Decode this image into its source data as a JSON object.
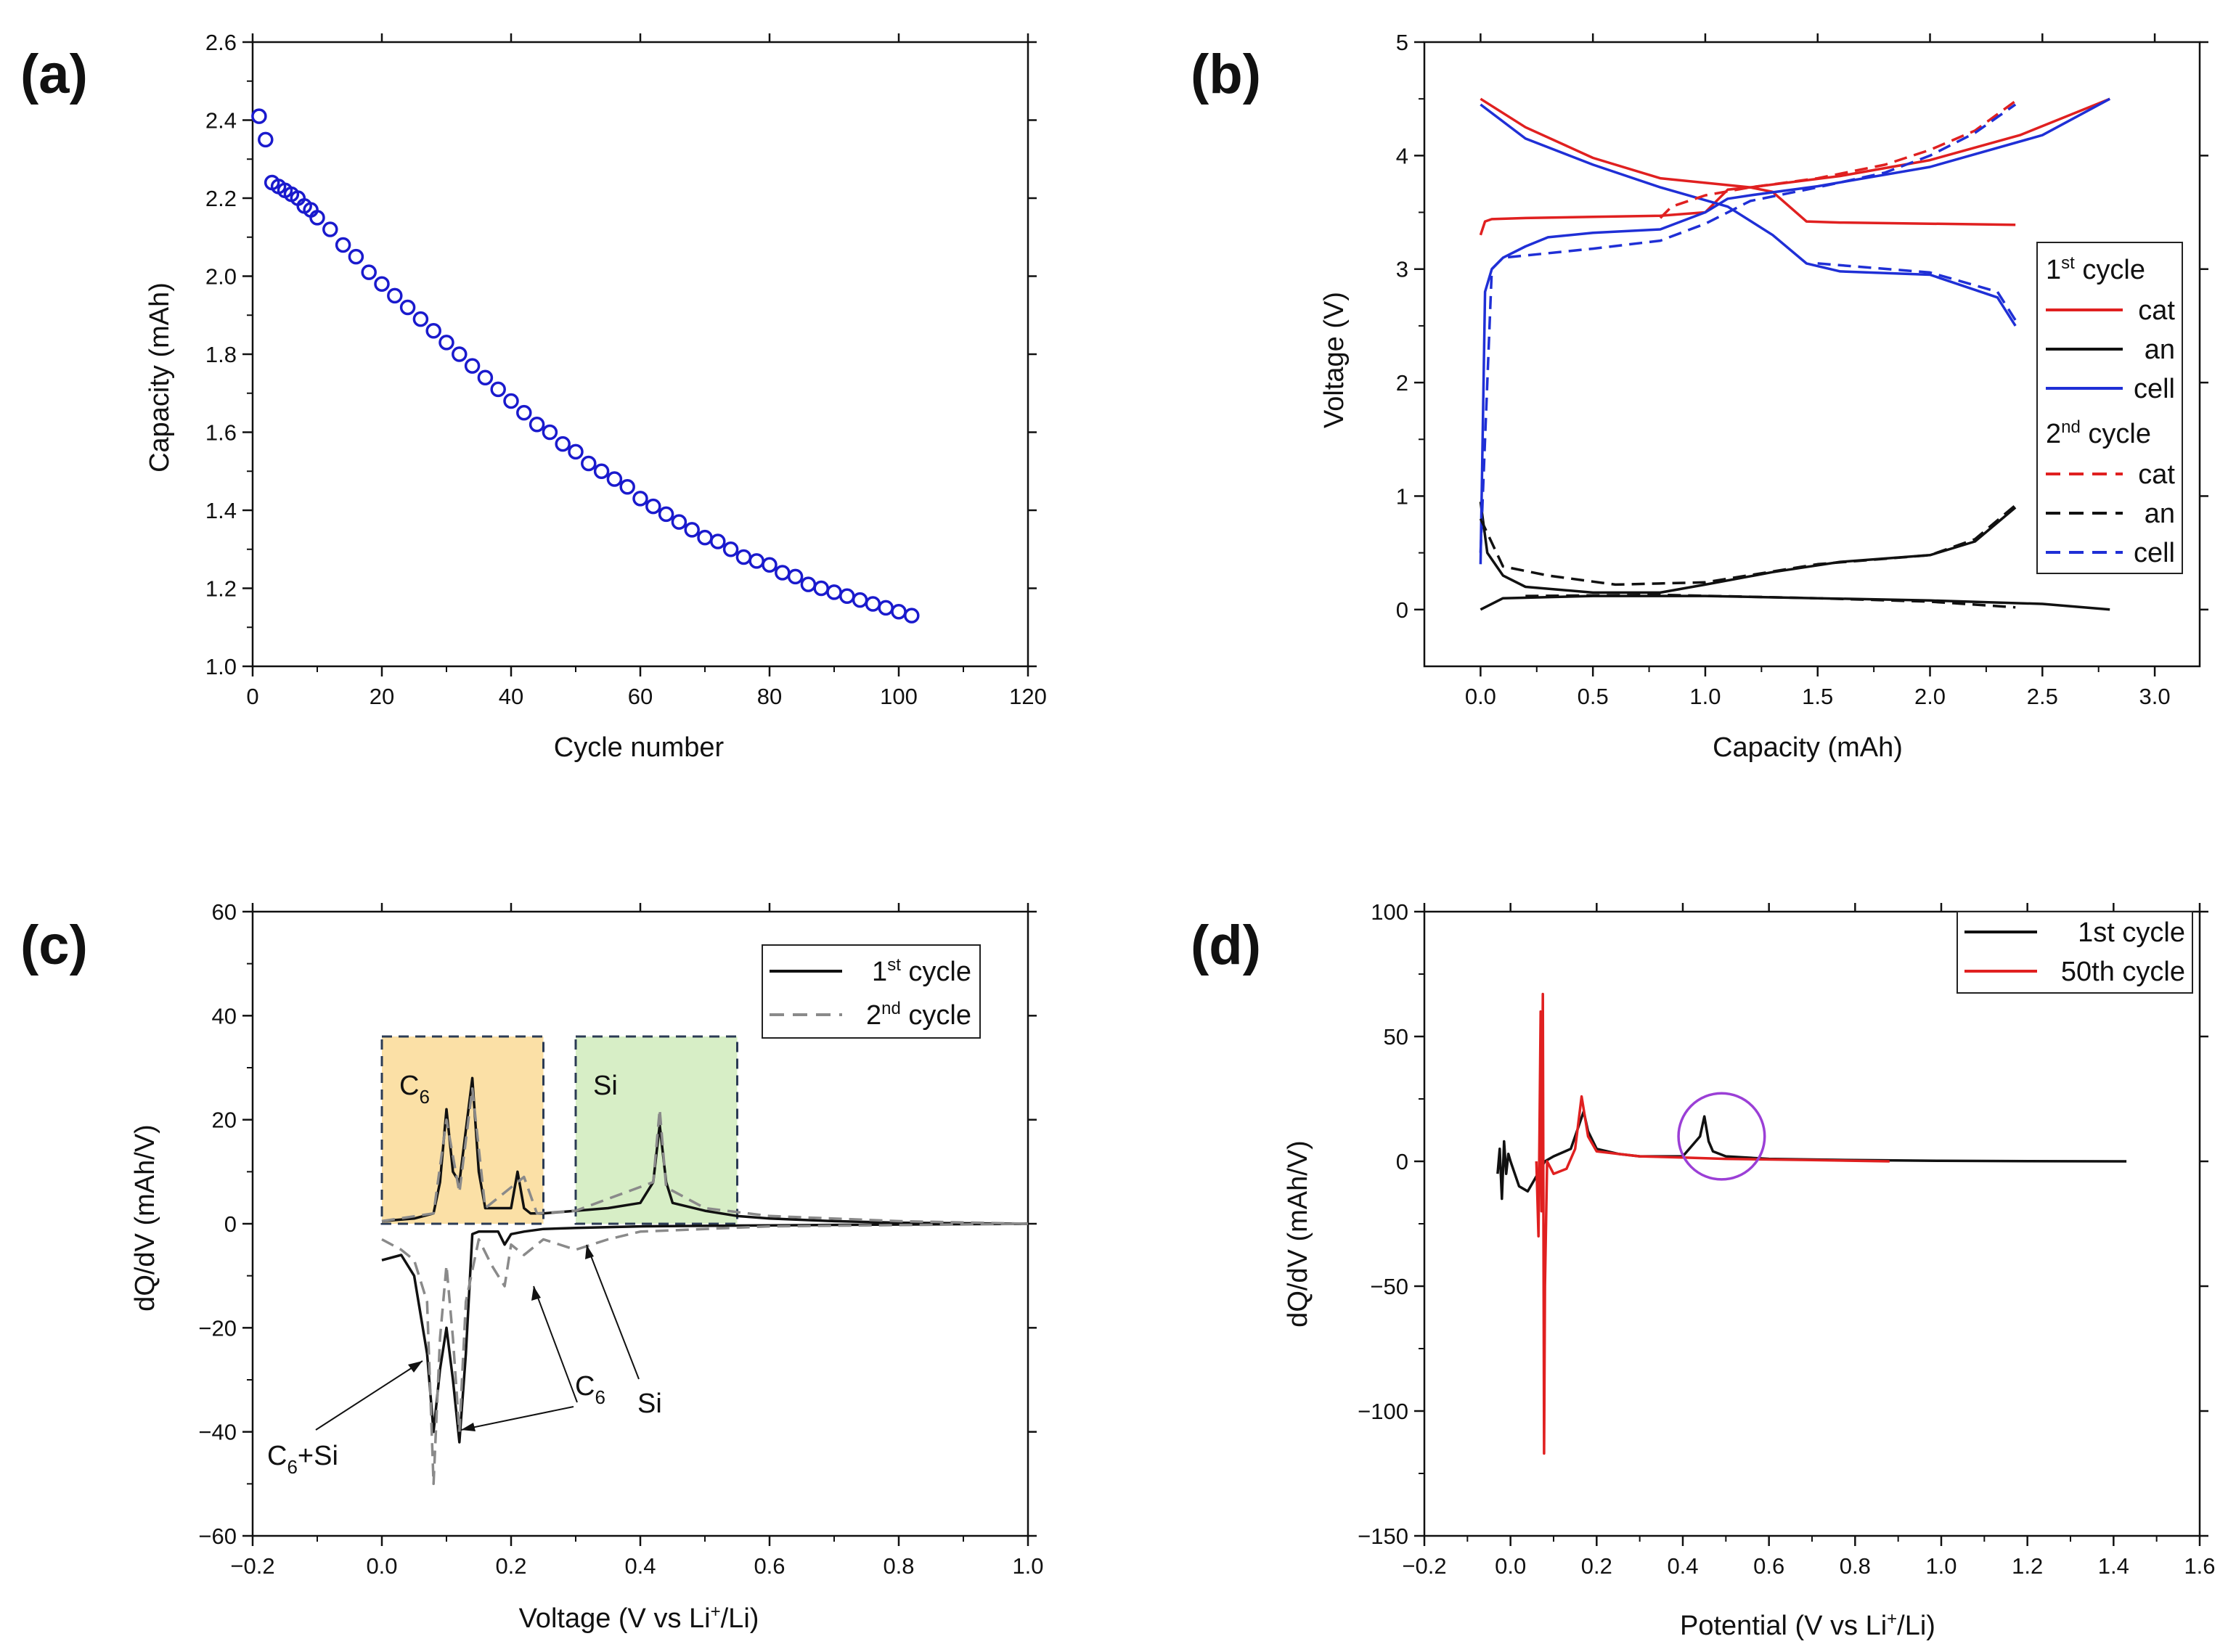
{
  "figure": {
    "background": "#ffffff"
  },
  "chart_data": [
    {
      "id": "a",
      "panel_label": "(a)",
      "type": "scatter",
      "xlabel": "Cycle number",
      "ylabel": "Capacity (mAh)",
      "xlim": [
        0,
        120
      ],
      "ylim": [
        1.0,
        2.6
      ],
      "xticks": [
        0,
        20,
        40,
        60,
        80,
        100,
        120
      ],
      "yticks": [
        1.0,
        1.2,
        1.4,
        1.6,
        1.8,
        2.0,
        2.2,
        2.4,
        2.6
      ],
      "tick_decimals_x": 0,
      "tick_decimals_y": 1,
      "grid": false,
      "marker": "open-circle",
      "color": "#1a1acd",
      "series": [
        {
          "name": "capacity",
          "x": [
            1,
            2,
            3,
            4,
            5,
            6,
            7,
            8,
            9,
            10,
            12,
            14,
            16,
            18,
            20,
            22,
            24,
            26,
            28,
            30,
            32,
            34,
            36,
            38,
            40,
            42,
            44,
            46,
            48,
            50,
            52,
            54,
            56,
            58,
            60,
            62,
            64,
            66,
            68,
            70,
            72,
            74,
            76,
            78,
            80,
            82,
            84,
            86,
            88,
            90,
            92,
            94,
            96,
            98,
            100,
            102
          ],
          "y": [
            2.41,
            2.35,
            2.24,
            2.23,
            2.22,
            2.21,
            2.2,
            2.18,
            2.17,
            2.15,
            2.12,
            2.08,
            2.05,
            2.01,
            1.98,
            1.95,
            1.92,
            1.89,
            1.86,
            1.83,
            1.8,
            1.77,
            1.74,
            1.71,
            1.68,
            1.65,
            1.62,
            1.6,
            1.57,
            1.55,
            1.52,
            1.5,
            1.48,
            1.46,
            1.43,
            1.41,
            1.39,
            1.37,
            1.35,
            1.33,
            1.32,
            1.3,
            1.28,
            1.27,
            1.26,
            1.24,
            1.23,
            1.21,
            1.2,
            1.19,
            1.18,
            1.17,
            1.16,
            1.15,
            1.14,
            1.13
          ]
        }
      ]
    },
    {
      "id": "b",
      "panel_label": "(b)",
      "type": "line",
      "xlabel": "Capacity (mAh)",
      "ylabel": "Voltage (V)",
      "xlim": [
        -0.25,
        3.2
      ],
      "ylim": [
        -0.5,
        5
      ],
      "xticks": [
        0.0,
        0.5,
        1.0,
        1.5,
        2.0,
        2.5,
        3.0
      ],
      "yticks": [
        0,
        1,
        2,
        3,
        4,
        5
      ],
      "tick_decimals_x": 1,
      "tick_decimals_y": 0,
      "grid": false,
      "legend": {
        "position": "right-middle",
        "groups": [
          {
            "heading": "1",
            "heading_sup": "st",
            "heading_rest": " cycle",
            "entries": [
              {
                "label": "cat",
                "color": "#e02020",
                "dash": "solid"
              },
              {
                "label": "an",
                "color": "#111111",
                "dash": "solid"
              },
              {
                "label": "cell",
                "color": "#1f2fd6",
                "dash": "solid"
              }
            ]
          },
          {
            "heading": "2",
            "heading_sup": "nd",
            "heading_rest": " cycle",
            "entries": [
              {
                "label": "cat",
                "color": "#e02020",
                "dash": "dashed"
              },
              {
                "label": "an",
                "color": "#111111",
                "dash": "dashed"
              },
              {
                "label": "cell",
                "color": "#1f2fd6",
                "dash": "dashed"
              }
            ]
          }
        ]
      },
      "series": [
        {
          "name": "cat 1st charge",
          "color": "#e02020",
          "dash": "solid",
          "x": [
            0.0,
            0.02,
            0.05,
            0.2,
            0.5,
            0.8,
            1.0,
            1.1,
            1.2,
            1.3,
            1.45,
            1.6,
            2.0,
            2.38
          ],
          "y": [
            3.3,
            3.42,
            3.44,
            3.45,
            3.46,
            3.47,
            3.5,
            3.7,
            3.72,
            3.68,
            3.42,
            3.41,
            3.4,
            3.39
          ]
        },
        {
          "name": "cat 1st discharge",
          "color": "#e02020",
          "dash": "solid",
          "x": [
            2.8,
            2.4,
            2.0,
            1.6,
            1.2,
            0.8,
            0.5,
            0.2,
            0.0
          ],
          "y": [
            4.5,
            4.18,
            3.96,
            3.82,
            3.72,
            3.8,
            3.98,
            4.25,
            4.5
          ]
        },
        {
          "name": "an 1st lithiation",
          "color": "#111111",
          "dash": "solid",
          "x": [
            0.0,
            0.1,
            0.5,
            1.0,
            1.5,
            2.0,
            2.5,
            2.8
          ],
          "y": [
            0.0,
            0.1,
            0.12,
            0.12,
            0.1,
            0.08,
            0.05,
            0.0
          ]
        },
        {
          "name": "an 1st delithiation",
          "color": "#111111",
          "dash": "solid",
          "x": [
            0.0,
            0.03,
            0.1,
            0.2,
            0.5,
            0.8,
            1.0,
            1.3,
            1.6,
            2.0,
            2.2,
            2.38
          ],
          "y": [
            0.95,
            0.5,
            0.3,
            0.2,
            0.15,
            0.15,
            0.22,
            0.33,
            0.42,
            0.48,
            0.6,
            0.9
          ]
        },
        {
          "name": "cell 1st charge",
          "color": "#1f2fd6",
          "dash": "solid",
          "x": [
            0.0,
            0.02,
            0.05,
            0.1,
            0.2,
            0.3,
            0.5,
            0.8,
            1.0,
            1.1,
            1.2,
            1.5,
            2.0,
            2.5,
            2.8
          ],
          "y": [
            0.4,
            2.8,
            3.0,
            3.1,
            3.2,
            3.28,
            3.32,
            3.35,
            3.5,
            3.62,
            3.65,
            3.73,
            3.9,
            4.18,
            4.5
          ]
        },
        {
          "name": "cell 1st discharge",
          "color": "#1f2fd6",
          "dash": "solid",
          "x": [
            0.0,
            0.2,
            0.5,
            0.8,
            1.1,
            1.3,
            1.45,
            1.6,
            2.0,
            2.3,
            2.38
          ],
          "y": [
            4.45,
            4.15,
            3.92,
            3.72,
            3.55,
            3.3,
            3.05,
            2.98,
            2.95,
            2.75,
            2.5
          ]
        },
        {
          "name": "cat 2nd charge",
          "color": "#e02020",
          "dash": "dashed",
          "x": [
            0.8,
            0.85,
            1.0,
            1.2,
            1.5,
            1.8,
            2.0,
            2.2,
            2.38
          ],
          "y": [
            3.45,
            3.55,
            3.65,
            3.72,
            3.8,
            3.92,
            4.05,
            4.22,
            4.48
          ]
        },
        {
          "name": "cell 2nd charge",
          "color": "#1f2fd6",
          "dash": "dashed",
          "x": [
            0.0,
            0.05,
            0.1,
            0.2,
            0.5,
            0.8,
            1.0,
            1.2,
            1.5,
            1.8,
            2.0,
            2.2,
            2.38
          ],
          "y": [
            0.5,
            3.0,
            3.1,
            3.12,
            3.18,
            3.25,
            3.4,
            3.6,
            3.72,
            3.85,
            4.0,
            4.2,
            4.45
          ]
        },
        {
          "name": "cell 2nd discharge",
          "color": "#1f2fd6",
          "dash": "dashed",
          "x": [
            1.5,
            2.0,
            2.3,
            2.38
          ],
          "y": [
            3.05,
            2.97,
            2.8,
            2.55
          ]
        },
        {
          "name": "an 2nd delithiation",
          "color": "#111111",
          "dash": "dashed",
          "x": [
            0.0,
            0.1,
            0.3,
            0.6,
            1.0,
            1.5,
            2.0,
            2.2,
            2.38
          ],
          "y": [
            0.8,
            0.38,
            0.3,
            0.22,
            0.24,
            0.4,
            0.48,
            0.62,
            0.92
          ]
        },
        {
          "name": "an 2nd lithiation",
          "color": "#111111",
          "dash": "dashed",
          "x": [
            0.2,
            0.8,
            1.5,
            2.0,
            2.38
          ],
          "y": [
            0.12,
            0.13,
            0.1,
            0.07,
            0.02
          ]
        }
      ]
    },
    {
      "id": "c",
      "panel_label": "(c)",
      "type": "line",
      "xlabel_pre": "Voltage (V vs Li",
      "xlabel_sup": "+",
      "xlabel_post": "/Li)",
      "ylabel": "dQ/dV (mAh/V)",
      "xlim": [
        -0.2,
        1.0
      ],
      "ylim": [
        -60,
        60
      ],
      "xticks": [
        -0.2,
        0.0,
        0.2,
        0.4,
        0.6,
        0.8,
        1.0
      ],
      "yticks": [
        -60,
        -40,
        -20,
        0,
        20,
        40,
        60
      ],
      "tick_decimals_x": 1,
      "tick_decimals_y": 0,
      "grid": false,
      "legend": {
        "position": "top-right",
        "entries": [
          {
            "label_pre": "1",
            "label_sup": "st",
            "label_post": " cycle",
            "color": "#111111",
            "dash": "solid"
          },
          {
            "label_pre": "2",
            "label_sup": "nd",
            "label_post": " cycle",
            "color": "#8a8a8a",
            "dash": "dashed"
          }
        ]
      },
      "regions": [
        {
          "label": "C",
          "label_sub": "6",
          "x": [
            0.0,
            0.25
          ],
          "y": [
            0,
            36
          ],
          "fill": "#fbe0a6",
          "border": "#2b3b55"
        },
        {
          "label": "Si",
          "label_sub": "",
          "x": [
            0.3,
            0.55
          ],
          "y": [
            0,
            36
          ],
          "fill": "#d7eec6",
          "border": "#2b3b55"
        }
      ],
      "annotations": [
        {
          "text": "C",
          "sub": "6",
          "post": "+Si"
        },
        {
          "text": "C",
          "sub": "6",
          "post": ""
        },
        {
          "text": "Si",
          "sub": "",
          "post": ""
        }
      ],
      "series": [
        {
          "name": "1st cycle delithiation",
          "color": "#111111",
          "dash": "solid",
          "x": [
            0.0,
            0.05,
            0.08,
            0.09,
            0.1,
            0.11,
            0.12,
            0.13,
            0.14,
            0.15,
            0.16,
            0.2,
            0.21,
            0.22,
            0.23,
            0.25,
            0.3,
            0.35,
            0.4,
            0.42,
            0.43,
            0.44,
            0.45,
            0.5,
            0.55,
            0.6,
            0.7,
            0.8,
            1.0
          ],
          "y": [
            0.5,
            1.0,
            2.0,
            8.0,
            22.0,
            10.0,
            8.0,
            18.0,
            28.0,
            10.0,
            3.0,
            3.0,
            10.0,
            3.0,
            2.0,
            2.0,
            2.5,
            3.0,
            4.0,
            8.0,
            19.0,
            8.0,
            4.0,
            2.5,
            1.5,
            1.0,
            0.5,
            0.2,
            0.0
          ]
        },
        {
          "name": "1st cycle lithiation",
          "color": "#111111",
          "dash": "solid",
          "x": [
            0.0,
            0.03,
            0.05,
            0.07,
            0.08,
            0.09,
            0.1,
            0.11,
            0.12,
            0.13,
            0.14,
            0.15,
            0.18,
            0.19,
            0.2,
            0.22,
            0.25,
            0.3,
            0.4,
            0.6,
            1.0
          ],
          "y": [
            -7.0,
            -6.0,
            -10.0,
            -25.0,
            -40.0,
            -28.0,
            -20.0,
            -30.0,
            -42.0,
            -25.0,
            -2.0,
            -1.5,
            -1.5,
            -4.0,
            -2.0,
            -1.5,
            -1.0,
            -0.8,
            -0.5,
            -0.3,
            0.0
          ]
        },
        {
          "name": "2nd cycle",
          "color": "#8a8a8a",
          "dash": "dashed",
          "x": [
            0.0,
            0.03,
            0.05,
            0.07,
            0.08,
            0.09,
            0.1,
            0.11,
            0.12,
            0.13,
            0.15,
            0.17,
            0.19,
            0.2,
            0.22,
            0.25,
            0.3,
            0.35,
            0.4,
            0.6,
            1.0
          ],
          "y": [
            -3.0,
            -5.0,
            -7.0,
            -15.0,
            -50.0,
            -22.0,
            -8.0,
            -22.0,
            -40.0,
            -15.0,
            -3.0,
            -8.0,
            -12.0,
            -4.0,
            -6.0,
            -3.0,
            -5.0,
            -3.0,
            -1.5,
            -0.5,
            0.0
          ]
        },
        {
          "name": "2nd cycle delithiation",
          "color": "#8a8a8a",
          "dash": "dashed",
          "x": [
            0.0,
            0.08,
            0.1,
            0.12,
            0.14,
            0.16,
            0.22,
            0.24,
            0.3,
            0.42,
            0.43,
            0.44,
            0.5,
            0.6,
            0.8,
            1.0
          ],
          "y": [
            0.5,
            2.0,
            20.0,
            6.0,
            26.0,
            3.0,
            9.0,
            2.0,
            2.5,
            8.0,
            22.0,
            7.0,
            3.0,
            1.5,
            0.5,
            0.0
          ]
        }
      ]
    },
    {
      "id": "d",
      "panel_label": "(d)",
      "type": "line",
      "xlabel_pre": "Potential (V vs Li",
      "xlabel_sup": "+",
      "xlabel_post": "/Li)",
      "ylabel": "dQ/dV (mAh/V)",
      "xlim": [
        -0.2,
        1.6
      ],
      "ylim": [
        -150,
        100
      ],
      "xticks": [
        -0.2,
        0.0,
        0.2,
        0.4,
        0.6,
        0.8,
        1.0,
        1.2,
        1.4,
        1.6
      ],
      "yticks": [
        -150,
        -100,
        -50,
        0,
        50,
        100
      ],
      "tick_decimals_x": 1,
      "tick_decimals_y": 0,
      "grid": false,
      "legend": {
        "position": "top-right",
        "entries": [
          {
            "label": "1st cycle",
            "color": "#111111"
          },
          {
            "label": "50th cycle",
            "color": "#e02020"
          }
        ]
      },
      "highlight": {
        "shape": "circle",
        "x": 0.49,
        "y": 10,
        "rx": 0.1,
        "color": "#9b3fd6"
      },
      "series": [
        {
          "name": "1st cycle",
          "color": "#111111",
          "x": [
            -0.03,
            -0.025,
            -0.02,
            -0.015,
            -0.01,
            -0.005,
            0.0,
            0.02,
            0.04,
            0.06,
            0.07,
            0.08,
            0.1,
            0.14,
            0.16,
            0.17,
            0.18,
            0.2,
            0.25,
            0.3,
            0.4,
            0.44,
            0.45,
            0.46,
            0.47,
            0.5,
            0.6,
            0.8,
            1.0,
            1.2,
            1.43
          ],
          "y": [
            -5.0,
            5.0,
            -15.0,
            8.0,
            -5.0,
            3.0,
            0.0,
            -10.0,
            -12.0,
            -6.0,
            -3.0,
            0.0,
            2.0,
            5.0,
            15.0,
            20.0,
            12.0,
            5.0,
            3.0,
            2.0,
            2.0,
            10.0,
            18.0,
            8.0,
            4.0,
            2.0,
            1.0,
            0.5,
            0.2,
            0.1,
            0.0
          ]
        },
        {
          "name": "50th cycle",
          "color": "#e02020",
          "x": [
            0.06,
            0.065,
            0.07,
            0.072,
            0.075,
            0.078,
            0.08,
            0.085,
            0.1,
            0.13,
            0.15,
            0.165,
            0.18,
            0.2,
            0.25,
            0.3,
            0.4,
            0.5,
            0.7,
            0.88
          ],
          "y": [
            0.0,
            -30.0,
            60.0,
            -20.0,
            67.0,
            -117.0,
            -50.0,
            0.0,
            -5.0,
            -3.0,
            5.0,
            26.0,
            10.0,
            4.0,
            3.0,
            2.0,
            1.5,
            1.0,
            0.5,
            0.0
          ]
        }
      ]
    }
  ]
}
